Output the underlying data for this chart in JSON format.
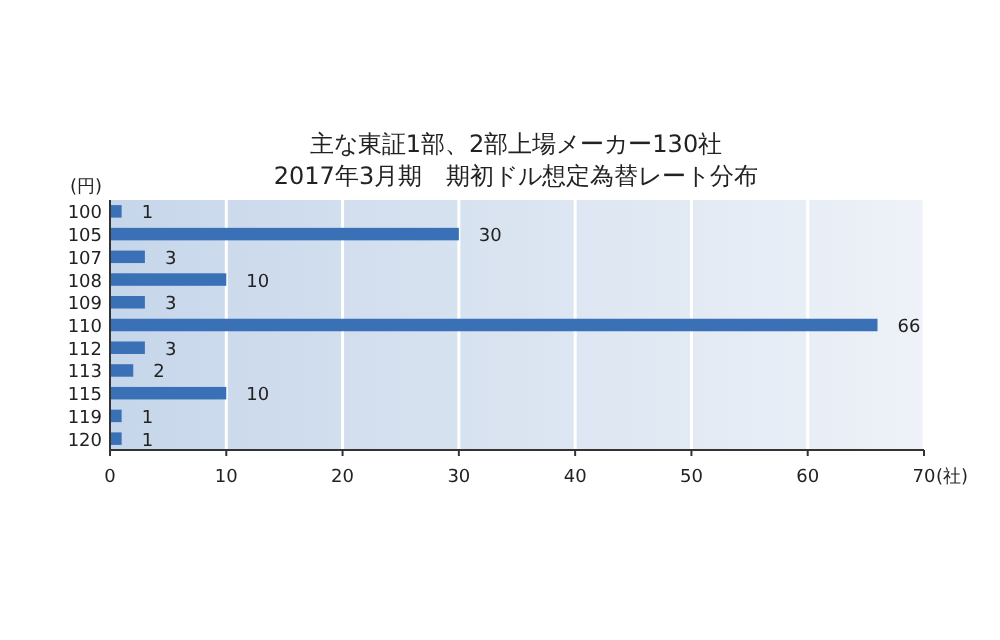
{
  "chart_data": {
    "type": "bar",
    "orientation": "horizontal",
    "title": "主な東証1部、2部上場メーカー130社",
    "subtitle": "2017年3月期　期初ドル想定為替レート分布",
    "xlabel": "(社)",
    "ylabel": "(円)",
    "categories": [
      "100",
      "105",
      "107",
      "108",
      "109",
      "110",
      "112",
      "113",
      "115",
      "119",
      "120"
    ],
    "values": [
      1,
      30,
      3,
      10,
      3,
      66,
      3,
      2,
      10,
      1,
      1
    ],
    "color": "#3a70b5",
    "xlim": [
      0,
      70
    ],
    "xticks": [
      0,
      10,
      20,
      30,
      40,
      50,
      60,
      70
    ],
    "grid": "x",
    "data_labels": true
  }
}
